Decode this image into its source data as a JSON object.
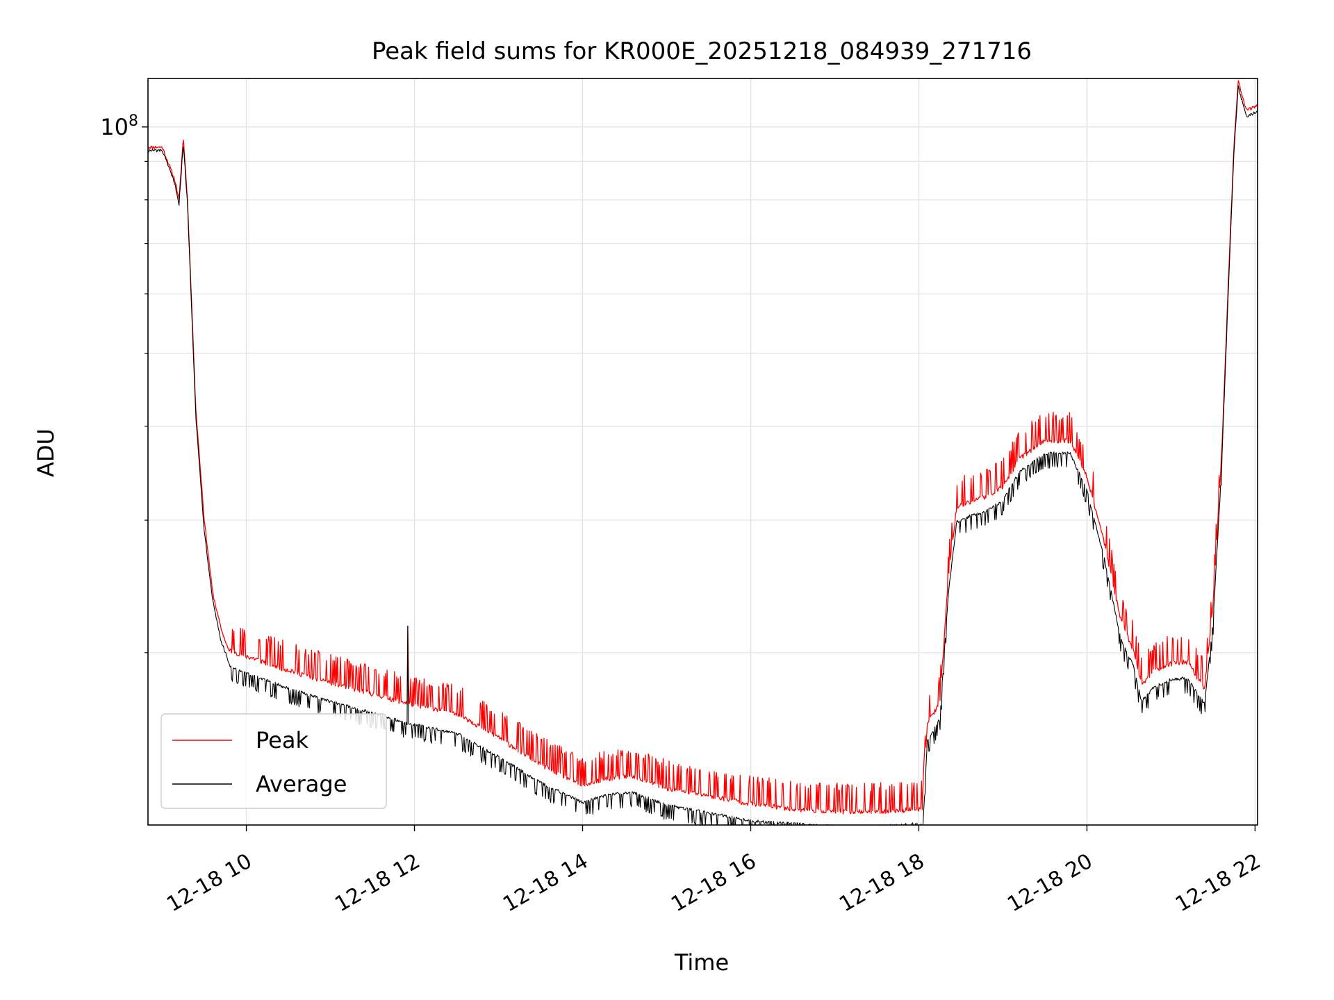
{
  "chart_data": {
    "type": "line",
    "title": "Peak field sums for KR000E_20251218_084939_271716",
    "xlabel": "Time",
    "ylabel": "ADU",
    "yscale": "log",
    "ylim": [
      11800000,
      116000000
    ],
    "xlim": [
      8.83,
      22.03
    ],
    "grid": true,
    "legend_position": "lower-left",
    "x_ticks": [
      {
        "value": 10,
        "label": "12-18 10"
      },
      {
        "value": 12,
        "label": "12-18 12"
      },
      {
        "value": 14,
        "label": "12-18 14"
      },
      {
        "value": 16,
        "label": "12-18 16"
      },
      {
        "value": 18,
        "label": "12-18 18"
      },
      {
        "value": 20,
        "label": "12-18 20"
      },
      {
        "value": 22,
        "label": "12-18 22"
      }
    ],
    "y_major_ticks": [
      {
        "value": 100000000,
        "base": "10",
        "exp": "8"
      }
    ],
    "y_minor_ticks": [
      20000000,
      30000000,
      40000000,
      50000000,
      60000000,
      70000000,
      80000000,
      90000000
    ],
    "series": [
      {
        "name": "Peak",
        "color": "#ff0000",
        "x": [
          8.83,
          9.0,
          9.15,
          9.2,
          9.25,
          9.3,
          9.35,
          9.4,
          9.5,
          9.6,
          9.7,
          9.8,
          10.0,
          10.5,
          11.0,
          11.5,
          11.9,
          12.5,
          13.0,
          13.5,
          14.0,
          14.3,
          14.6,
          15.0,
          15.5,
          16.0,
          16.5,
          17.0,
          17.5,
          18.05,
          18.1,
          18.25,
          18.35,
          18.45,
          18.6,
          18.8,
          19.0,
          19.2,
          19.5,
          19.8,
          20.0,
          20.2,
          20.4,
          20.55,
          20.65,
          20.8,
          21.0,
          21.2,
          21.3,
          21.4,
          21.5,
          21.6,
          21.7,
          21.75,
          21.8,
          21.9,
          22.03
        ],
        "values": [
          94000000,
          94000000,
          85000000,
          80000000,
          97000000,
          80000000,
          58000000,
          42000000,
          30000000,
          24000000,
          21500000,
          20000000,
          19600000,
          18800000,
          18100000,
          17500000,
          17000000,
          16500000,
          15300000,
          14100000,
          13200000,
          13500000,
          13600000,
          13100000,
          12800000,
          12500000,
          12300000,
          12200000,
          12200000,
          12300000,
          16000000,
          17000000,
          25000000,
          31000000,
          31500000,
          32000000,
          33000000,
          36000000,
          38000000,
          38000000,
          34000000,
          28000000,
          22000000,
          20000000,
          18000000,
          18800000,
          19200000,
          19300000,
          18500000,
          17800000,
          23000000,
          36000000,
          70000000,
          95000000,
          115000000,
          105000000,
          107000000
        ]
      },
      {
        "name": "Average",
        "color": "#000000",
        "x": [
          8.83,
          9.0,
          9.15,
          9.2,
          9.25,
          9.3,
          9.35,
          9.4,
          9.5,
          9.6,
          9.7,
          9.8,
          10.0,
          10.5,
          11.0,
          11.5,
          11.9,
          12.5,
          13.0,
          13.5,
          14.0,
          14.3,
          14.6,
          15.0,
          15.5,
          16.0,
          16.5,
          17.0,
          17.5,
          18.05,
          18.1,
          18.25,
          18.35,
          18.45,
          18.6,
          18.8,
          19.0,
          19.2,
          19.5,
          19.8,
          20.0,
          20.2,
          20.4,
          20.55,
          20.65,
          20.8,
          21.0,
          21.2,
          21.3,
          21.4,
          21.5,
          21.6,
          21.7,
          21.75,
          21.8,
          21.9,
          22.03
        ],
        "values": [
          93000000,
          93000000,
          84000000,
          79000000,
          95000000,
          79000000,
          57000000,
          41000000,
          29000000,
          23500000,
          20700000,
          19300000,
          18900000,
          18000000,
          17300000,
          16700000,
          16200000,
          15700000,
          14600000,
          13500000,
          12700000,
          13000000,
          13100000,
          12600000,
          12300000,
          12000000,
          11900000,
          11800000,
          11800000,
          11900000,
          15300000,
          16400000,
          24000000,
          30000000,
          30500000,
          31000000,
          32000000,
          35000000,
          37000000,
          37000000,
          33000000,
          27000000,
          21000000,
          19300000,
          17300000,
          18100000,
          18500000,
          18600000,
          17800000,
          17200000,
          22000000,
          35000000,
          68000000,
          93000000,
          113000000,
          103000000,
          105000000
        ]
      }
    ],
    "annotations": [
      {
        "type": "spike",
        "x": 11.92,
        "value": 21700000,
        "series": "Peak"
      }
    ]
  }
}
